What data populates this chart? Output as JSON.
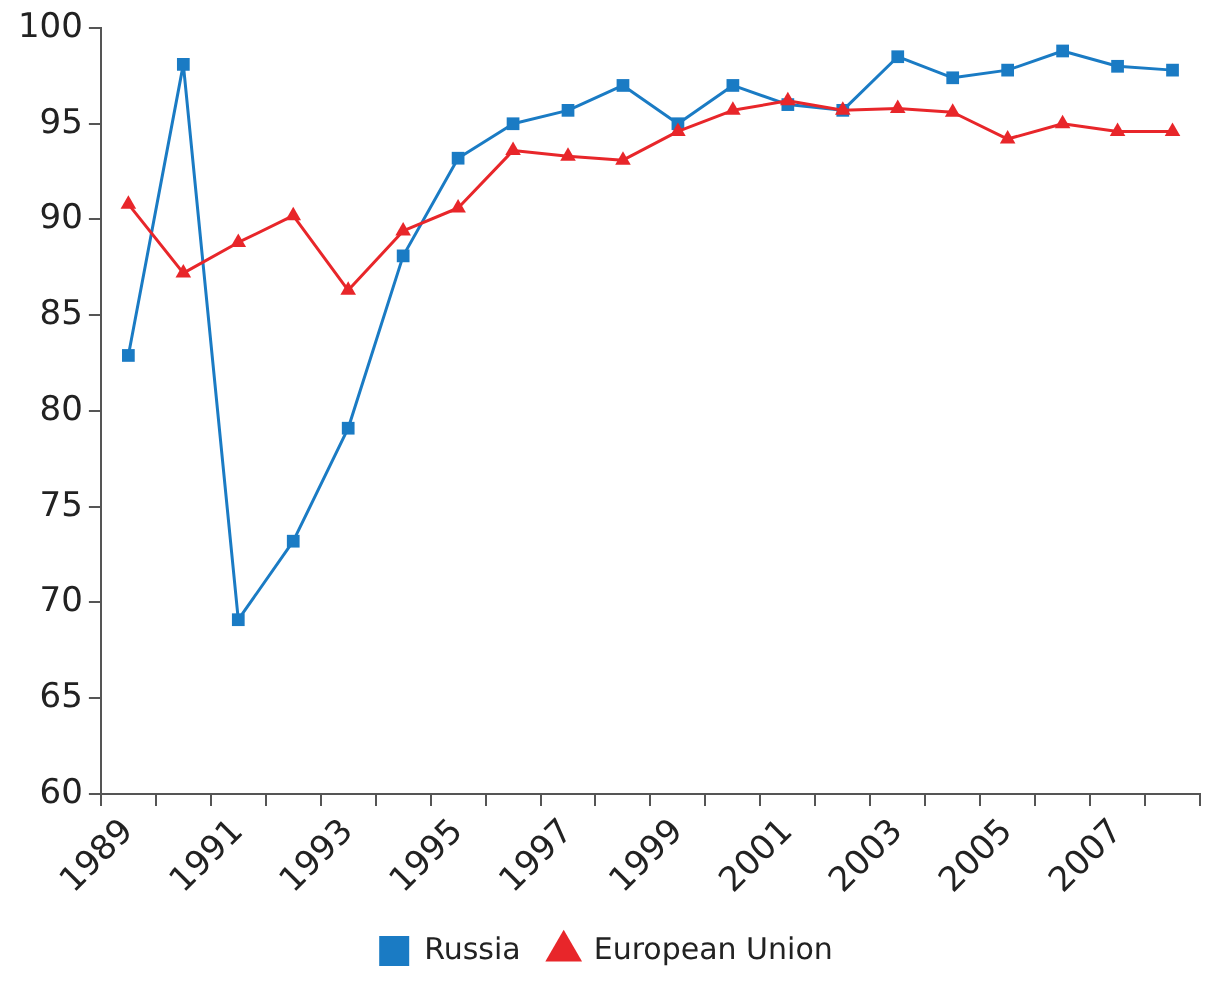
{
  "chart_data": {
    "type": "line",
    "categories": [
      "1989",
      null,
      "1991",
      null,
      "1993",
      null,
      "1995",
      null,
      "1997",
      null,
      "1999",
      null,
      "2001",
      null,
      "2003",
      null,
      "2005",
      null,
      "2007",
      null
    ],
    "series": [
      {
        "name": "Russia",
        "color": "#1a7bc4",
        "marker": "square",
        "values": [
          82.9,
          98.1,
          69.1,
          73.2,
          79.1,
          88.1,
          93.2,
          95.0,
          95.7,
          97.0,
          95.0,
          97.0,
          96.0,
          95.7,
          98.5,
          97.4,
          97.8,
          98.8,
          98.0,
          97.8
        ]
      },
      {
        "name": "European Union",
        "color": "#e8262a",
        "marker": "triangle",
        "values": [
          90.8,
          87.2,
          88.8,
          90.2,
          86.3,
          89.4,
          90.6,
          93.6,
          93.3,
          93.1,
          94.6,
          95.7,
          96.2,
          95.7,
          95.8,
          95.6,
          94.2,
          95.0,
          94.6,
          94.6
        ]
      }
    ],
    "ylim": [
      60,
      100
    ],
    "yticks": [
      60,
      65,
      70,
      75,
      80,
      85,
      90,
      95,
      100
    ],
    "grid": false,
    "legend": "bottom",
    "line_style": "solid"
  }
}
